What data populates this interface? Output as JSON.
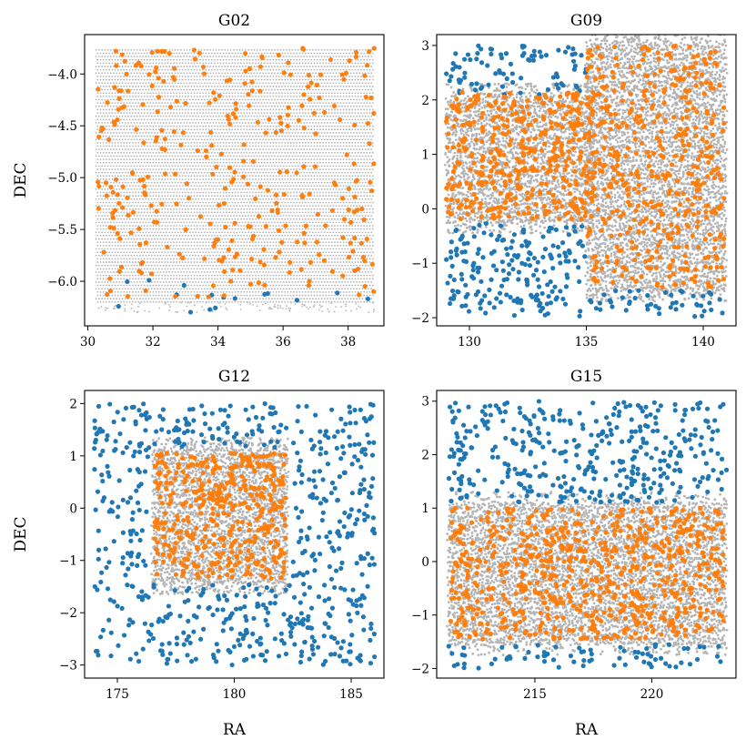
{
  "colors": {
    "grid_points": "#b4b4b4",
    "series_outside": "#1f77b4",
    "series_inside": "#ff7f0e",
    "frame": "#000000"
  },
  "chart_data": [
    {
      "type": "scatter",
      "title": "G02",
      "xlabel": "",
      "ylabel": "DEC",
      "xlim": [
        29.9,
        39.1
      ],
      "ylim": [
        -6.43,
        -3.62
      ],
      "xticks": [
        30,
        32,
        34,
        36,
        38
      ],
      "yticks": [
        -6.0,
        -5.5,
        -5.0,
        -4.5,
        -4.0
      ],
      "xtick_labels": [
        "30",
        "32",
        "34",
        "36",
        "38"
      ],
      "ytick_labels": [
        "−6.0",
        "−5.5",
        "−5.0",
        "−4.5",
        "−4.0"
      ],
      "footprint": {
        "ra": [
          30.3,
          38.8
        ],
        "dec": [
          -6.3,
          -3.75
        ]
      },
      "orange_count": 330,
      "blue_count": 16,
      "blue_dec_range": [
        -6.3,
        -5.9
      ]
    },
    {
      "type": "scatter",
      "title": "G09",
      "xlabel": "",
      "ylabel": "",
      "xlim": [
        128.6,
        141.4
      ],
      "ylim": [
        -2.15,
        3.2
      ],
      "xticks": [
        130,
        135,
        140
      ],
      "yticks": [
        -2,
        -1,
        0,
        1,
        2,
        3
      ],
      "xtick_labels": [
        "130",
        "135",
        "140"
      ],
      "ytick_labels": [
        "−2",
        "−1",
        "0",
        "1",
        "2",
        "3"
      ],
      "footprint": "two offset blocks: RA 129–135 DEC -0.2–2.1; RA 135–141 DEC -1.5–3.0",
      "orange_count": 900,
      "blue_count": 330,
      "total_range": {
        "ra": [
          129,
          141
        ],
        "dec": [
          -2,
          3
        ]
      }
    },
    {
      "type": "scatter",
      "title": "G12",
      "xlabel": "RA",
      "ylabel": "DEC",
      "xlim": [
        173.6,
        186.4
      ],
      "ylim": [
        -3.25,
        2.25
      ],
      "xticks": [
        175,
        180,
        185
      ],
      "yticks": [
        -3,
        -2,
        -1,
        0,
        1,
        2
      ],
      "xtick_labels": [
        "175",
        "180",
        "185"
      ],
      "ytick_labels": [
        "−3",
        "−2",
        "−1",
        "0",
        "1",
        "2"
      ],
      "footprint": {
        "ra": [
          176.5,
          182.3
        ],
        "dec": [
          -1.4,
          1.1
        ]
      },
      "orange_count": 420,
      "blue_count": 620,
      "total_range": {
        "ra": [
          174,
          186
        ],
        "dec": [
          -3,
          2
        ]
      }
    },
    {
      "type": "scatter",
      "title": "G15",
      "xlabel": "RA",
      "ylabel": "",
      "xlim": [
        210.8,
        223.6
      ],
      "ylim": [
        -2.18,
        3.2
      ],
      "xticks": [
        215,
        220
      ],
      "yticks": [
        -2,
        -1,
        0,
        1,
        2,
        3
      ],
      "xtick_labels": [
        "215",
        "220"
      ],
      "ytick_labels": [
        "−2",
        "−1",
        "0",
        "1",
        "2",
        "3"
      ],
      "footprint": {
        "ra": [
          211.3,
          223.2
        ],
        "dec": [
          -1.5,
          1.05
        ]
      },
      "orange_count": 720,
      "blue_count": 460,
      "total_range": {
        "ra": [
          211,
          223
        ],
        "dec": [
          -2,
          3
        ]
      }
    }
  ]
}
